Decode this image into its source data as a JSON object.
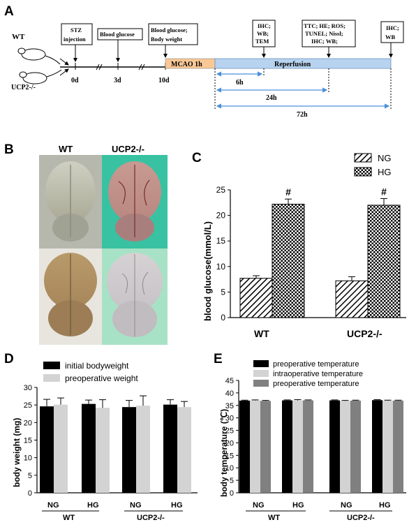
{
  "figure": {
    "panels": {
      "A": {
        "letter": "A",
        "groups": [
          "WT",
          "UCP2-/-"
        ],
        "days": [
          "0d",
          "3d",
          "10d"
        ],
        "events": [
          {
            "lines": [
              "STZ",
              "injection"
            ]
          },
          {
            "lines": [
              "Blood glucose"
            ]
          },
          {
            "lines": [
              "Blood glucose;",
              "Body weight"
            ]
          },
          {
            "lines": [
              "IHC;",
              "WB;",
              "TEM"
            ]
          },
          {
            "lines": [
              "TTC; HE; ROS;",
              "TUNEL; Nissl;",
              "IHC; WB;"
            ]
          },
          {
            "lines": [
              "IHC;",
              "WB"
            ]
          }
        ],
        "mcao_label": "MCAO 1h",
        "reperfusion_label": "Reperfusion",
        "intervals": [
          "6h",
          "24h",
          "72h"
        ]
      },
      "B": {
        "letter": "B",
        "col_labels": [
          "WT",
          "UCP2-/-"
        ]
      },
      "C": {
        "letter": "C",
        "ylabel": "blood glucose(mmol/L)",
        "legend": [
          "NG",
          "HG"
        ],
        "groups": [
          "WT",
          "UCP2-/-"
        ],
        "sig_mark": "#"
      },
      "D": {
        "letter": "D",
        "ylabel": "body weight (mg)",
        "legend": [
          "initial bodyweight",
          "preoperative weight"
        ],
        "sub_categories": [
          "NG",
          "HG",
          "NG",
          "HG"
        ],
        "groups": [
          "WT",
          "UCP2-/-"
        ]
      },
      "E": {
        "letter": "E",
        "ylabel": "body temperature (℃)",
        "legend": [
          "preoperative temperature",
          "intraoperative temperature",
          "preoperative temperature"
        ],
        "sub_categories": [
          "NG",
          "HG",
          "NG",
          "HG"
        ],
        "groups": [
          "WT",
          "UCP2-/-"
        ]
      }
    }
  },
  "chart_data": [
    {
      "panel": "C",
      "type": "bar",
      "categories": [
        "WT",
        "UCP2-/-"
      ],
      "series": [
        {
          "name": "NG",
          "values": [
            7.7,
            7.2
          ],
          "errors": [
            0.5,
            0.8
          ],
          "pattern": "diagonal-hatch"
        },
        {
          "name": "HG",
          "values": [
            22.2,
            22.0
          ],
          "errors": [
            1.0,
            1.3
          ],
          "pattern": "checker"
        }
      ],
      "annotations": [
        {
          "series": "HG",
          "category": "WT",
          "text": "#"
        },
        {
          "series": "HG",
          "category": "UCP2-/-",
          "text": "#"
        }
      ],
      "ylabel": "blood glucose(mmol/L)",
      "ylim": [
        0,
        25
      ],
      "yticks": [
        0,
        5,
        10,
        15,
        20,
        25
      ],
      "legend_position": "top-right"
    },
    {
      "panel": "D",
      "type": "bar",
      "categories": [
        "WT NG",
        "WT HG",
        "UCP2-/- NG",
        "UCP2-/- HG"
      ],
      "series": [
        {
          "name": "initial bodyweight",
          "values": [
            24.6,
            25.3,
            24.4,
            25.1
          ],
          "errors": [
            2.0,
            1.1,
            1.9,
            1.4
          ],
          "color": "#000000"
        },
        {
          "name": "preoperative weight",
          "values": [
            25.1,
            24.2,
            24.8,
            24.4
          ],
          "errors": [
            1.9,
            2.3,
            2.8,
            1.6
          ],
          "color": "#d3d3d3"
        }
      ],
      "ylabel": "body weight (mg)",
      "ylim": [
        0,
        30
      ],
      "yticks": [
        0,
        5,
        10,
        15,
        20,
        25,
        30
      ],
      "legend_position": "top-left"
    },
    {
      "panel": "E",
      "type": "bar",
      "categories": [
        "WT NG",
        "WT HG",
        "UCP2-/- NG",
        "UCP2-/- HG"
      ],
      "series": [
        {
          "name": "preoperative temperature",
          "values": [
            36.9,
            37.0,
            37.0,
            37.1
          ],
          "errors": [
            0.2,
            0.2,
            0.2,
            0.2
          ],
          "color": "#000000"
        },
        {
          "name": "intraoperative temperature",
          "values": [
            37.0,
            37.0,
            36.8,
            36.9
          ],
          "errors": [
            0.2,
            0.3,
            0.2,
            0.2
          ],
          "color": "#d3d3d3"
        },
        {
          "name": "preoperative temperature",
          "values": [
            36.8,
            37.0,
            36.9,
            36.9
          ],
          "errors": [
            0.2,
            0.2,
            0.2,
            0.2
          ],
          "color": "#808080"
        }
      ],
      "ylabel": "body temperature (℃)",
      "ylim": [
        0,
        45
      ],
      "yticks": [
        0,
        5,
        10,
        15,
        20,
        25,
        30,
        35,
        40,
        45
      ],
      "legend_position": "top"
    }
  ]
}
